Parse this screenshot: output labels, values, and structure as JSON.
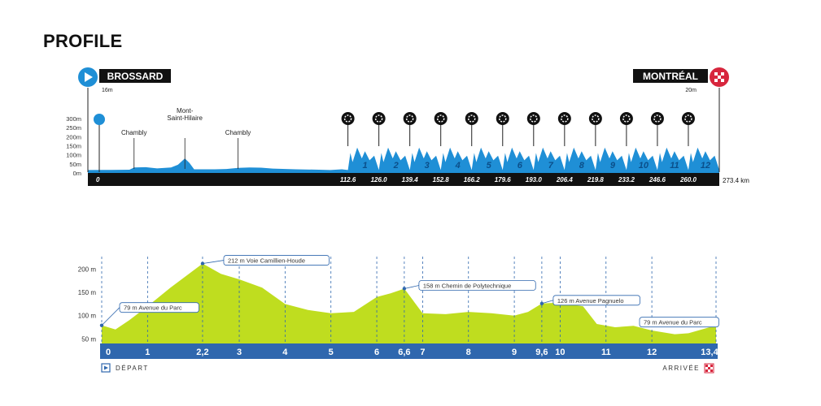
{
  "page_title": "PROFILE",
  "colors": {
    "overview_fill": "#1f8fd6",
    "overview_axis": "#111111",
    "detail_fill": "#bfdd1f",
    "detail_axis": "#2f67ae",
    "marker": "#2f67ae",
    "start_blue": "#1f8fd6",
    "finish_red": "#d7263d"
  },
  "chart_data": [
    {
      "type": "area",
      "title": "",
      "start": {
        "name": "BROSSARD",
        "elevation": "16m",
        "km_label": "0"
      },
      "finish": {
        "name": "MONTRÉAL",
        "elevation": "20m",
        "km_label": "273.4 km"
      },
      "xlim": [
        0,
        273.4
      ],
      "ylim": [
        0,
        300
      ],
      "yticks": [
        "300m",
        "250m",
        "200m",
        "150m",
        "100m",
        "50m",
        "0m"
      ],
      "lap_labels": [
        "112.6",
        "126.0",
        "139.4",
        "152.8",
        "166.2",
        "179.6",
        "193.0",
        "206.4",
        "219.8",
        "233.2",
        "246.6",
        "260.0"
      ],
      "lap_km": [
        112.6,
        126.0,
        139.4,
        152.8,
        166.2,
        179.6,
        193.0,
        206.4,
        219.8,
        233.2,
        246.6,
        260.0
      ],
      "laps": [
        "1",
        "2",
        "3",
        "4",
        "5",
        "6",
        "7",
        "8",
        "9",
        "10",
        "11",
        "12"
      ],
      "places": [
        {
          "name": "Chambly",
          "km": 20
        },
        {
          "name": "Mont-Saint-Hilaire",
          "km": 42
        },
        {
          "name": "Chambly",
          "km": 65
        }
      ],
      "points": [
        [
          0,
          16
        ],
        [
          10,
          17
        ],
        [
          18,
          18
        ],
        [
          20,
          30
        ],
        [
          25,
          32
        ],
        [
          30,
          25
        ],
        [
          36,
          30
        ],
        [
          39,
          45
        ],
        [
          42,
          80
        ],
        [
          44,
          55
        ],
        [
          46,
          20
        ],
        [
          55,
          20
        ],
        [
          60,
          22
        ],
        [
          65,
          28
        ],
        [
          70,
          30
        ],
        [
          75,
          29
        ],
        [
          80,
          24
        ],
        [
          90,
          20
        ],
        [
          100,
          18
        ],
        [
          105,
          16
        ],
        [
          110,
          20
        ],
        [
          112.6,
          16
        ]
      ]
    },
    {
      "type": "area",
      "title": "",
      "xlabel": "",
      "ylabel": "",
      "xlim": [
        0,
        13.4
      ],
      "ylim": [
        40,
        220
      ],
      "yticks": [
        200,
        150,
        100,
        50
      ],
      "ytick_labels": [
        "200 m",
        "150 m",
        "100 m",
        "50 m"
      ],
      "xticks": [
        "0",
        "1",
        "2,2",
        "3",
        "4",
        "5",
        "6",
        "6,6",
        "7",
        "8",
        "9",
        "9,6",
        "10",
        "11",
        "12",
        "13,4"
      ],
      "xtick_values": [
        0,
        1,
        2.2,
        3,
        4,
        5,
        6,
        6.6,
        7,
        8,
        9,
        9.6,
        10,
        11,
        12,
        13.4
      ],
      "points": [
        [
          0,
          79
        ],
        [
          0.3,
          70
        ],
        [
          0.6,
          90
        ],
        [
          1.0,
          120
        ],
        [
          1.5,
          160
        ],
        [
          2.2,
          212
        ],
        [
          2.6,
          190
        ],
        [
          3.0,
          178
        ],
        [
          3.5,
          160
        ],
        [
          4.0,
          125
        ],
        [
          4.5,
          112
        ],
        [
          5.0,
          105
        ],
        [
          5.5,
          108
        ],
        [
          6.0,
          140
        ],
        [
          6.3,
          148
        ],
        [
          6.6,
          158
        ],
        [
          7.0,
          105
        ],
        [
          7.5,
          103
        ],
        [
          8.0,
          108
        ],
        [
          8.5,
          105
        ],
        [
          9.0,
          100
        ],
        [
          9.3,
          108
        ],
        [
          9.6,
          126
        ],
        [
          10.0,
          128
        ],
        [
          10.5,
          120
        ],
        [
          10.8,
          82
        ],
        [
          11.2,
          75
        ],
        [
          11.6,
          78
        ],
        [
          12.0,
          68
        ],
        [
          12.5,
          60
        ],
        [
          12.8,
          62
        ],
        [
          13.4,
          79
        ]
      ],
      "callouts": [
        {
          "text": "79 m Avenue du Parc",
          "km": 0,
          "elev": 79
        },
        {
          "text": "212 m Voie Camillien-Houde",
          "km": 2.2,
          "elev": 212
        },
        {
          "text": "158 m Chemin de Polytechnique",
          "km": 6.6,
          "elev": 158
        },
        {
          "text": "126 m Avenue Pagnuelo",
          "km": 9.6,
          "elev": 126
        },
        {
          "text": "79 m Avenue du Parc",
          "km": 13.4,
          "elev": 79
        }
      ],
      "start_label": "DÉPART",
      "finish_label": "ARRIVÉE"
    }
  ]
}
